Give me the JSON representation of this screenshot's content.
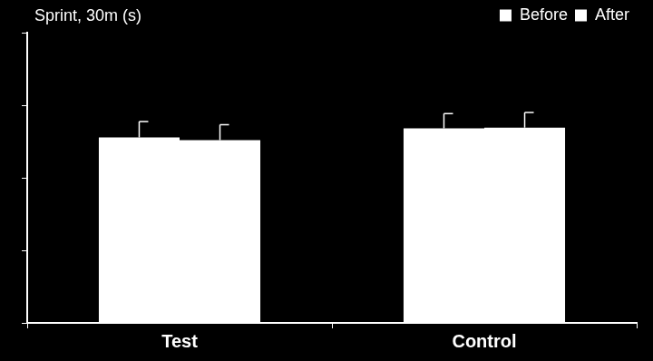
{
  "chart_data": {
    "type": "bar",
    "title": "Sprint, 30m (s)",
    "categories": [
      "Test",
      "Control"
    ],
    "series": [
      {
        "name": "Before",
        "color": "#ffffff",
        "values": [
          5.11,
          5.36
        ],
        "errors": [
          0.44,
          0.41
        ]
      },
      {
        "name": "After",
        "color": "#ffffff",
        "values": [
          5.04,
          5.38
        ],
        "errors": [
          0.42,
          0.42
        ]
      }
    ],
    "ylim": [
      0,
      8
    ],
    "yticks": [
      0,
      2,
      4,
      6,
      8
    ],
    "grid": false,
    "legend": "top-right",
    "tick_labels": "x"
  }
}
